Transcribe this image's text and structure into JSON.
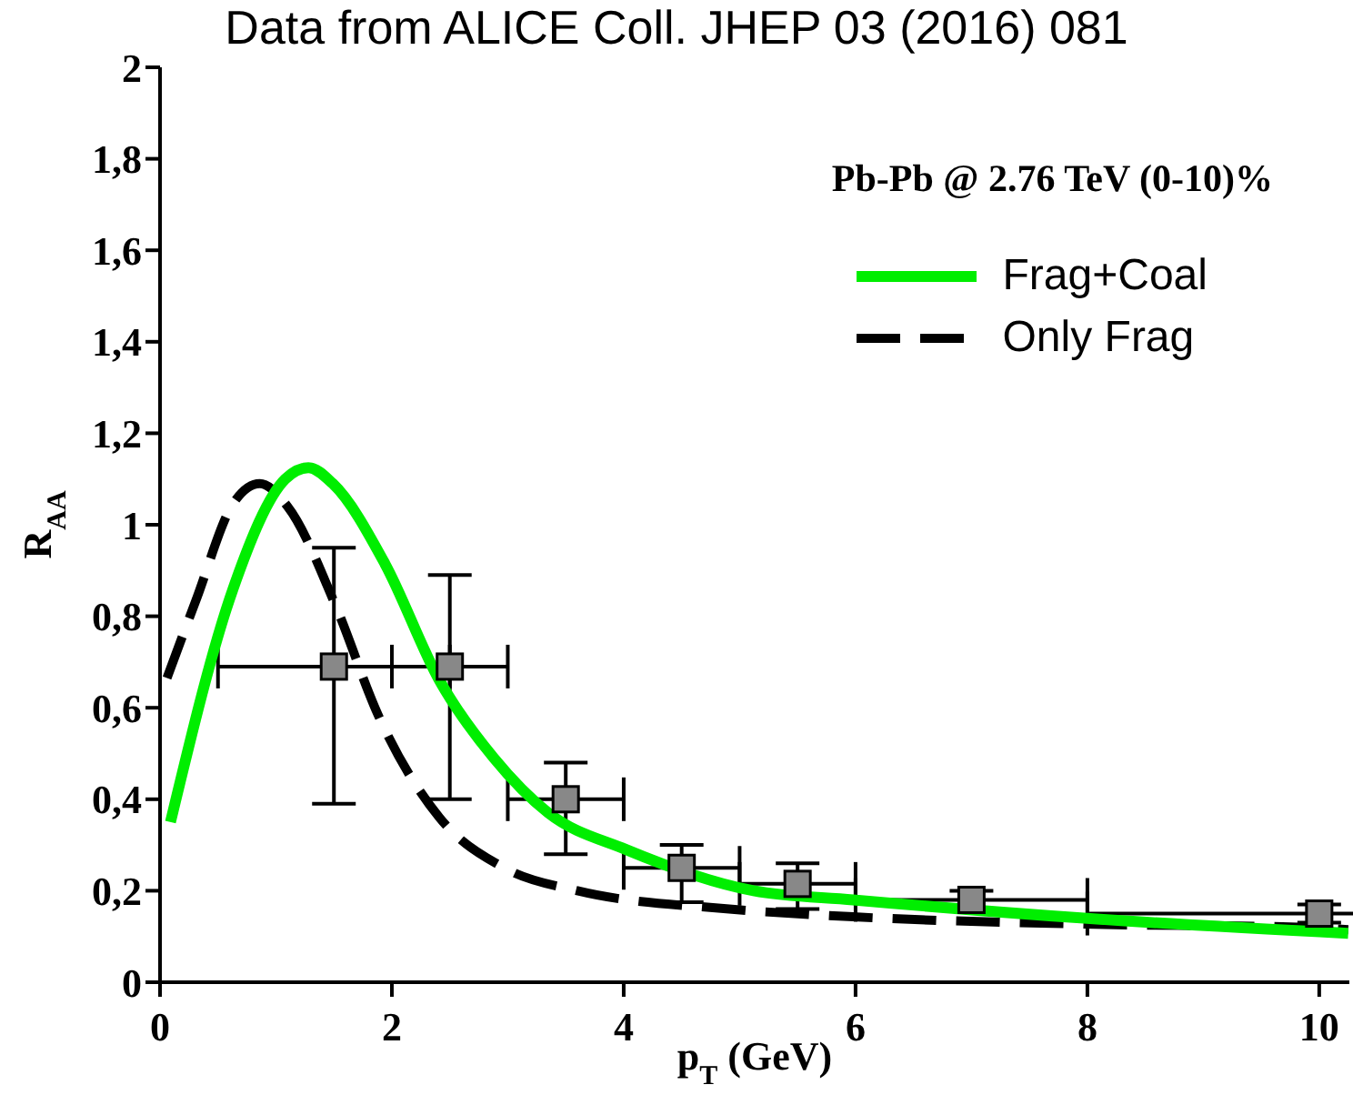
{
  "chart_data": {
    "type": "line",
    "title": "Data from ALICE Coll. JHEP 03 (2016) 081",
    "xlabel": "p$_{T}$ (GeV)",
    "ylabel": "R$_{AA}$",
    "annotations": [
      "Pb-Pb @ 2.76 TeV  (0-10)%"
    ],
    "xlim": [
      0,
      10.26
    ],
    "xticks": [
      0,
      2,
      4,
      6,
      8,
      10
    ],
    "ylim": [
      0,
      2
    ],
    "yticks": [
      {
        "value": 0,
        "label": "0"
      },
      {
        "value": 0.2,
        "label": "0,2"
      },
      {
        "value": 0.4,
        "label": "0,4"
      },
      {
        "value": 0.6,
        "label": "0,6"
      },
      {
        "value": 0.8,
        "label": "0,8"
      },
      {
        "value": 1,
        "label": "1"
      },
      {
        "value": 1.2,
        "label": "1,2"
      },
      {
        "value": 1.4,
        "label": "1,4"
      },
      {
        "value": 1.6,
        "label": "1,6"
      },
      {
        "value": 1.8,
        "label": "1,8"
      },
      {
        "value": 2,
        "label": "2"
      }
    ],
    "legend": "top right",
    "grid": false,
    "series": [
      {
        "name": "Frag+Coal",
        "color": "#00ee00",
        "line_style": "solid",
        "marker": "none",
        "x": [
          0.09,
          0.63,
          1.08,
          1.28,
          1.49,
          1.94,
          2.41,
          2.88,
          3.35,
          4.02,
          5.12,
          5.98,
          7.97,
          10.25
        ],
        "values": [
          0.35,
          0.86,
          1.1,
          1.125,
          1.09,
          0.915,
          0.66,
          0.49,
          0.37,
          0.29,
          0.2,
          0.18,
          0.14,
          0.107
        ]
      },
      {
        "name": "Only Frag",
        "color": "#000000",
        "line_style": "dashed",
        "marker": "none",
        "x": [
          0.06,
          0.31,
          0.63,
          0.86,
          1.1,
          1.52,
          1.88,
          2.41,
          2.97,
          3.6,
          4.91,
          5.98,
          7.97,
          9.89,
          10.25
        ],
        "values": [
          0.665,
          0.835,
          1.046,
          1.09,
          1.04,
          0.82,
          0.585,
          0.36,
          0.25,
          0.2,
          0.16,
          0.143,
          0.127,
          0.12,
          0.115
        ]
      },
      {
        "type": "scatter",
        "color": "#888888",
        "marker": "square",
        "x": [
          1.5,
          2.5,
          3.5,
          4.5,
          5.5,
          7,
          10
        ],
        "values": [
          0.69,
          0.69,
          0.4,
          0.25,
          0.215,
          0.18,
          0.15
        ],
        "errors": [
          [
            0.39,
            0.95
          ],
          [
            0.4,
            0.89
          ],
          [
            0.28,
            0.48
          ],
          [
            0.175,
            0.3
          ],
          [
            0.16,
            0.26
          ],
          [
            0.16,
            0.2
          ],
          [
            0.13,
            0.17
          ]
        ],
        "xerrors": [
          1,
          0.5,
          0.5,
          0.5,
          0.5,
          1,
          2
        ]
      }
    ]
  }
}
